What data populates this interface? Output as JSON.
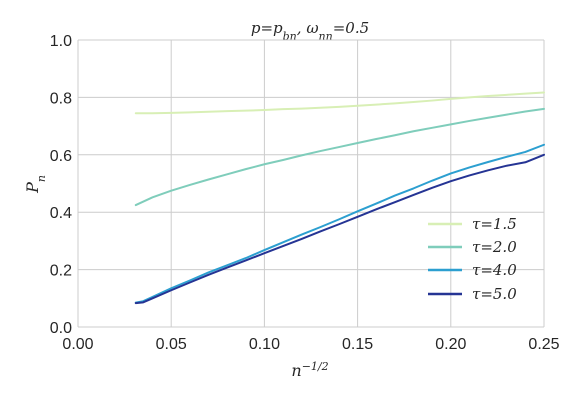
{
  "chart_data": {
    "type": "line",
    "title": "p=p_bn, ω_nn=0.5",
    "title_parts": {
      "p": "p",
      "eq1": "=",
      "pbn_base": "p",
      "pbn_sub": "bn",
      "sep": ", ",
      "omega_base": "ω",
      "omega_sub": "nn",
      "eq2": "=",
      "value": "0.5"
    },
    "xlabel": "n^-1/2",
    "xlabel_parts": {
      "base": "n",
      "sup": "−1/2"
    },
    "ylabel": "P_n",
    "ylabel_parts": {
      "base": "P",
      "sub": "n"
    },
    "xlim": [
      0.0,
      0.25
    ],
    "ylim": [
      0.0,
      1.0
    ],
    "xticks": [
      0.0,
      0.05,
      0.1,
      0.15,
      0.2,
      0.25
    ],
    "xtick_labels": [
      "0.00",
      "0.05",
      "0.10",
      "0.15",
      "0.20",
      "0.25"
    ],
    "yticks": [
      0.0,
      0.2,
      0.4,
      0.6,
      0.8,
      1.0
    ],
    "ytick_labels": [
      "0.0",
      "0.2",
      "0.4",
      "0.6",
      "0.8",
      "1.0"
    ],
    "grid": true,
    "legend_position": "lower-right",
    "series": [
      {
        "name": "τ=1.5",
        "name_parts": {
          "symbol": "τ",
          "eq": "=",
          "value": "1.5"
        },
        "color": "#d8efb5",
        "points": [
          [
            0.031,
            0.745
          ],
          [
            0.04,
            0.745
          ],
          [
            0.05,
            0.746
          ],
          [
            0.06,
            0.748
          ],
          [
            0.07,
            0.75
          ],
          [
            0.08,
            0.752
          ],
          [
            0.09,
            0.754
          ],
          [
            0.1,
            0.756
          ],
          [
            0.11,
            0.759
          ],
          [
            0.12,
            0.761
          ],
          [
            0.13,
            0.764
          ],
          [
            0.14,
            0.767
          ],
          [
            0.15,
            0.771
          ],
          [
            0.16,
            0.775
          ],
          [
            0.17,
            0.779
          ],
          [
            0.18,
            0.784
          ],
          [
            0.19,
            0.789
          ],
          [
            0.2,
            0.795
          ],
          [
            0.21,
            0.8
          ],
          [
            0.22,
            0.805
          ],
          [
            0.23,
            0.809
          ],
          [
            0.24,
            0.813
          ],
          [
            0.25,
            0.817
          ]
        ]
      },
      {
        "name": "τ=2.0",
        "name_parts": {
          "symbol": "τ",
          "eq": "=",
          "value": "2.0"
        },
        "color": "#7fcdbb",
        "points": [
          [
            0.031,
            0.425
          ],
          [
            0.04,
            0.452
          ],
          [
            0.05,
            0.475
          ],
          [
            0.06,
            0.495
          ],
          [
            0.07,
            0.514
          ],
          [
            0.08,
            0.532
          ],
          [
            0.09,
            0.55
          ],
          [
            0.1,
            0.567
          ],
          [
            0.11,
            0.582
          ],
          [
            0.12,
            0.598
          ],
          [
            0.13,
            0.613
          ],
          [
            0.14,
            0.627
          ],
          [
            0.15,
            0.641
          ],
          [
            0.16,
            0.655
          ],
          [
            0.17,
            0.668
          ],
          [
            0.18,
            0.682
          ],
          [
            0.19,
            0.694
          ],
          [
            0.2,
            0.706
          ],
          [
            0.21,
            0.718
          ],
          [
            0.22,
            0.729
          ],
          [
            0.23,
            0.74
          ],
          [
            0.24,
            0.751
          ],
          [
            0.25,
            0.76
          ]
        ]
      },
      {
        "name": "τ=4.0",
        "name_parts": {
          "symbol": "τ",
          "eq": "=",
          "value": "4.0"
        },
        "color": "#2c9fd0",
        "points": [
          [
            0.031,
            0.085
          ],
          [
            0.035,
            0.09
          ],
          [
            0.04,
            0.105
          ],
          [
            0.05,
            0.135
          ],
          [
            0.06,
            0.162
          ],
          [
            0.07,
            0.19
          ],
          [
            0.08,
            0.215
          ],
          [
            0.09,
            0.24
          ],
          [
            0.1,
            0.268
          ],
          [
            0.11,
            0.295
          ],
          [
            0.12,
            0.322
          ],
          [
            0.13,
            0.348
          ],
          [
            0.14,
            0.375
          ],
          [
            0.15,
            0.403
          ],
          [
            0.16,
            0.43
          ],
          [
            0.17,
            0.458
          ],
          [
            0.18,
            0.483
          ],
          [
            0.19,
            0.51
          ],
          [
            0.2,
            0.535
          ],
          [
            0.21,
            0.556
          ],
          [
            0.22,
            0.575
          ],
          [
            0.23,
            0.593
          ],
          [
            0.24,
            0.61
          ],
          [
            0.25,
            0.635
          ]
        ]
      },
      {
        "name": "τ=5.0",
        "name_parts": {
          "symbol": "τ",
          "eq": "=",
          "value": "5.0"
        },
        "color": "#253494",
        "points": [
          [
            0.031,
            0.083
          ],
          [
            0.035,
            0.086
          ],
          [
            0.04,
            0.1
          ],
          [
            0.05,
            0.128
          ],
          [
            0.06,
            0.155
          ],
          [
            0.07,
            0.182
          ],
          [
            0.08,
            0.207
          ],
          [
            0.09,
            0.232
          ],
          [
            0.1,
            0.257
          ],
          [
            0.11,
            0.282
          ],
          [
            0.12,
            0.307
          ],
          [
            0.13,
            0.333
          ],
          [
            0.14,
            0.358
          ],
          [
            0.15,
            0.384
          ],
          [
            0.16,
            0.41
          ],
          [
            0.17,
            0.435
          ],
          [
            0.18,
            0.46
          ],
          [
            0.19,
            0.485
          ],
          [
            0.2,
            0.508
          ],
          [
            0.21,
            0.528
          ],
          [
            0.22,
            0.546
          ],
          [
            0.23,
            0.562
          ],
          [
            0.24,
            0.574
          ],
          [
            0.25,
            0.6
          ]
        ]
      }
    ]
  }
}
